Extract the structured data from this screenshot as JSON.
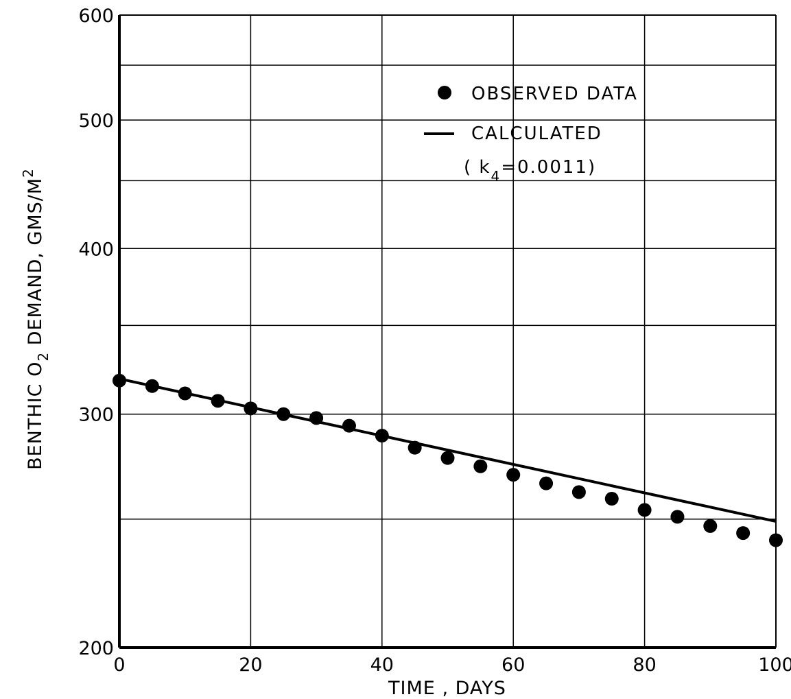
{
  "chart_data": {
    "type": "scatter",
    "title": "",
    "xlabel": "TIME , DAYS",
    "ylabel": {
      "prefix": "BENTHIC  O",
      "o2_sub": "2",
      "middle": " DEMAND, GMS/M",
      "sup": "2"
    },
    "x_scale": "linear",
    "y_scale": "log",
    "xlim": [
      0,
      100
    ],
    "ylim": [
      200,
      600
    ],
    "x_ticks": [
      "0",
      "20",
      "40",
      "60",
      "80",
      "100"
    ],
    "x_tick_values": [
      0,
      20,
      40,
      60,
      80,
      100
    ],
    "y_ticks": [
      "200",
      "300",
      "400",
      "500",
      "600"
    ],
    "y_tick_values": [
      200,
      300,
      400,
      500,
      600
    ],
    "y_minor_gridlines": [
      250,
      350,
      450,
      550
    ],
    "grid": true,
    "legend": {
      "position": "top-right",
      "entries": [
        {
          "marker": "dot",
          "label": "OBSERVED DATA"
        },
        {
          "marker": "line",
          "label": "CALCULATED",
          "label2_prefix": "( k",
          "label2_sub": "4",
          "label2_suffix": "=0.0011)"
        }
      ]
    },
    "series": [
      {
        "name": "OBSERVED DATA",
        "kind": "points",
        "x": [
          0,
          5,
          10,
          15,
          20,
          25,
          30,
          35,
          40,
          45,
          50,
          55,
          60,
          65,
          70,
          75,
          80,
          85,
          90,
          95,
          100
        ],
        "y": [
          318,
          315,
          311,
          307,
          303,
          300,
          298,
          294,
          289,
          283,
          278,
          274,
          270,
          266,
          262,
          259,
          254,
          251,
          247,
          244,
          241
        ]
      },
      {
        "name": "CALCULATED",
        "kind": "line",
        "x": [
          0,
          100
        ],
        "y": [
          319,
          249
        ]
      }
    ],
    "colors": {
      "ink": "#000000",
      "background": "#ffffff"
    }
  }
}
